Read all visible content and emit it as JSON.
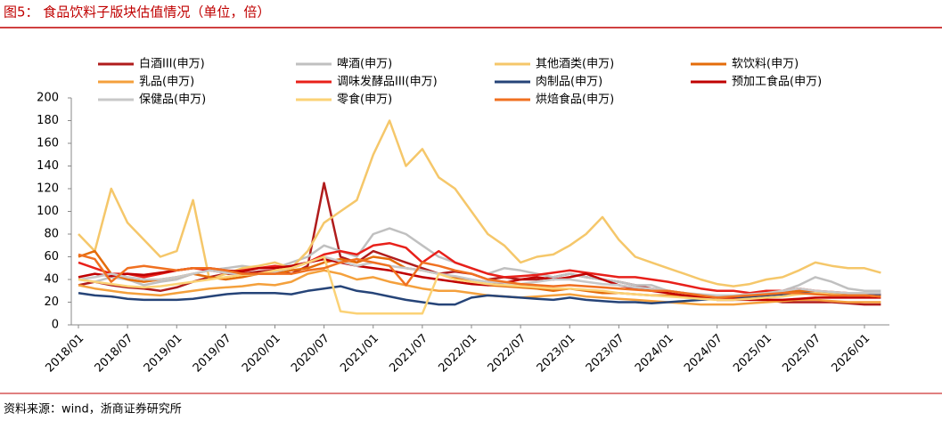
{
  "chart_data": {
    "type": "line",
    "title": "图5：  食品饮料子版块估值情况（单位，倍）",
    "source": "资料来源：wind，浙商证券研究所",
    "categories": [
      "2018/01",
      null,
      null,
      "2018/07",
      null,
      null,
      "2019/01",
      null,
      null,
      "2019/07",
      null,
      null,
      "2020/01",
      null,
      null,
      "2020/07",
      null,
      null,
      "2021/01",
      null,
      null,
      "2021/07",
      null,
      null,
      "2022/01",
      null,
      null,
      "2022/07",
      null,
      null,
      "2023/01",
      null,
      null,
      "2023/07",
      null,
      null,
      "2024/01",
      null,
      null,
      "2024/07",
      null,
      null,
      "2025/01",
      null,
      null,
      "2025/07",
      null,
      null,
      "2026/01",
      null
    ],
    "ylim": [
      0,
      200
    ],
    "yticks": [
      0,
      20,
      40,
      60,
      80,
      100,
      120,
      140,
      160,
      180,
      200
    ],
    "series": [
      {
        "name": "白酒III(申万)",
        "color": "#b01c1c",
        "values": [
          35,
          38,
          35,
          33,
          32,
          30,
          33,
          38,
          42,
          45,
          45,
          47,
          48,
          45,
          52,
          125,
          60,
          55,
          65,
          60,
          55,
          50,
          45,
          47,
          45,
          40,
          42,
          40,
          40,
          42,
          45,
          42,
          40,
          38,
          35,
          32,
          30,
          28,
          25,
          22,
          22,
          22,
          22,
          20,
          20,
          20,
          20,
          19,
          18,
          18
        ]
      },
      {
        "name": "啤酒(申万)",
        "color": "#c0c0c0",
        "values": [
          40,
          38,
          42,
          40,
          35,
          38,
          40,
          45,
          48,
          50,
          52,
          50,
          50,
          55,
          60,
          70,
          65,
          60,
          80,
          85,
          80,
          70,
          60,
          55,
          50,
          45,
          50,
          48,
          45,
          42,
          45,
          42,
          40,
          38,
          35,
          35,
          30,
          28,
          26,
          25,
          24,
          25,
          28,
          30,
          35,
          42,
          38,
          32,
          30,
          30
        ]
      },
      {
        "name": "其他酒类(申万)",
        "color": "#f5c76a",
        "values": [
          80,
          65,
          120,
          90,
          75,
          60,
          65,
          110,
          40,
          45,
          50,
          52,
          55,
          50,
          65,
          90,
          100,
          110,
          150,
          180,
          140,
          155,
          130,
          120,
          100,
          80,
          70,
          55,
          60,
          62,
          70,
          80,
          95,
          75,
          60,
          55,
          50,
          45,
          40,
          36,
          34,
          36,
          40,
          42,
          48,
          55,
          52,
          50,
          50,
          46
        ]
      },
      {
        "name": "软饮料(申万)",
        "color": "#e46c0a",
        "values": [
          60,
          65,
          45,
          40,
          38,
          40,
          42,
          45,
          42,
          40,
          42,
          45,
          45,
          48,
          50,
          55,
          58,
          55,
          60,
          58,
          50,
          48,
          45,
          42,
          38,
          35,
          34,
          33,
          32,
          30,
          32,
          30,
          28,
          28,
          27,
          26,
          26,
          25,
          24,
          22,
          22,
          25,
          26,
          28,
          30,
          30,
          28,
          27,
          27,
          26
        ]
      },
      {
        "name": "乳品(申万)",
        "color": "#f4a03c",
        "values": [
          35,
          32,
          30,
          28,
          27,
          26,
          28,
          30,
          32,
          33,
          34,
          36,
          35,
          38,
          45,
          48,
          45,
          40,
          42,
          38,
          35,
          32,
          30,
          30,
          28,
          26,
          25,
          24,
          25,
          26,
          27,
          25,
          24,
          23,
          22,
          21,
          20,
          19,
          18,
          18,
          18,
          19,
          20,
          21,
          22,
          22,
          21,
          20,
          20,
          20
        ]
      },
      {
        "name": "调味发酵品III(申万)",
        "color": "#e8201a",
        "values": [
          55,
          50,
          45,
          45,
          42,
          45,
          48,
          50,
          48,
          46,
          48,
          50,
          52,
          50,
          55,
          62,
          65,
          62,
          70,
          72,
          68,
          55,
          65,
          55,
          50,
          45,
          42,
          43,
          44,
          46,
          48,
          46,
          44,
          42,
          42,
          40,
          38,
          35,
          32,
          30,
          30,
          28,
          30,
          30,
          32,
          30,
          29,
          28,
          28,
          27
        ]
      },
      {
        "name": "肉制品(申万)",
        "color": "#264478",
        "values": [
          28,
          26,
          25,
          23,
          22,
          22,
          22,
          23,
          25,
          27,
          28,
          28,
          28,
          27,
          30,
          32,
          34,
          30,
          28,
          25,
          22,
          20,
          18,
          18,
          24,
          26,
          25,
          24,
          23,
          22,
          24,
          22,
          21,
          20,
          20,
          19,
          20,
          21,
          22,
          23,
          24,
          25,
          26,
          27,
          28,
          28,
          27,
          26,
          26,
          26
        ]
      },
      {
        "name": "预加工食品(申万)",
        "color": "#c00000",
        "values": [
          42,
          45,
          43,
          45,
          44,
          46,
          48,
          50,
          50,
          48,
          47,
          50,
          50,
          52,
          55,
          58,
          55,
          52,
          50,
          48,
          45,
          42,
          40,
          38,
          36,
          35,
          37,
          40,
          42,
          40,
          42,
          45,
          40,
          35,
          32,
          30,
          28,
          26,
          25,
          24,
          23,
          22,
          22,
          22,
          23,
          24,
          24,
          24,
          24,
          24
        ]
      },
      {
        "name": "保健品(申万)",
        "color": "#c8c8c8",
        "values": [
          40,
          42,
          45,
          42,
          40,
          40,
          42,
          45,
          48,
          46,
          44,
          45,
          47,
          50,
          55,
          60,
          56,
          52,
          55,
          52,
          50,
          48,
          45,
          43,
          40,
          38,
          37,
          36,
          38,
          40,
          40,
          38,
          36,
          35,
          33,
          32,
          30,
          28,
          27,
          26,
          26,
          27,
          28,
          30,
          32,
          30,
          29,
          28,
          28,
          28
        ]
      },
      {
        "name": "零食(申万)",
        "color": "#fbd276",
        "values": [
          40,
          38,
          36,
          34,
          33,
          34,
          36,
          38,
          40,
          42,
          44,
          45,
          48,
          50,
          55,
          60,
          12,
          10,
          10,
          10,
          10,
          10,
          45,
          40,
          38,
          36,
          35,
          34,
          33,
          32,
          32,
          31,
          30,
          28,
          27,
          26,
          25,
          24,
          23,
          22,
          22,
          23,
          24,
          25,
          27,
          28,
          27,
          26,
          26,
          25
        ]
      },
      {
        "name": "烘焙食品(申万)",
        "color": "#f07020",
        "values": [
          62,
          58,
          38,
          50,
          52,
          50,
          48,
          50,
          50,
          48,
          45,
          45,
          45,
          45,
          48,
          50,
          55,
          58,
          55,
          52,
          35,
          55,
          52,
          48,
          45,
          40,
          38,
          36,
          35,
          34,
          35,
          34,
          33,
          32,
          31,
          30,
          30,
          28,
          26,
          24,
          25,
          26,
          27,
          28,
          28,
          27,
          26,
          26,
          26,
          25
        ]
      }
    ]
  }
}
